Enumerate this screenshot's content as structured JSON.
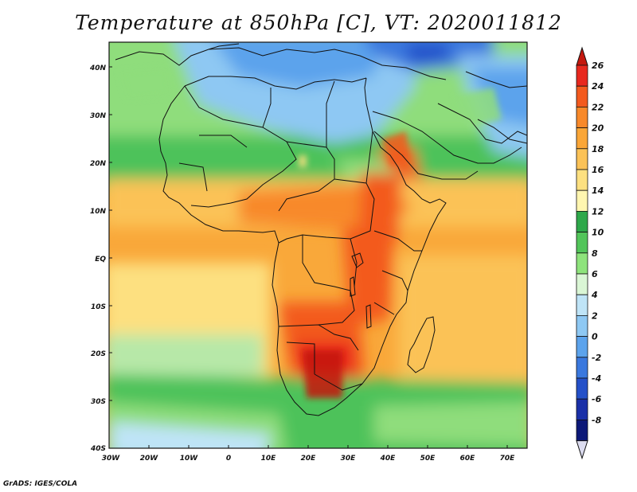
{
  "title": "Temperature at 850hPa [C], VT: 2020011812",
  "credit": "GrADS: IGES/COLA",
  "map": {
    "latitude_labels": [
      "40N",
      "30N",
      "20N",
      "10N",
      "EQ",
      "10S",
      "20S",
      "30S",
      "40S"
    ],
    "longitude_labels": [
      "30W",
      "20W",
      "10W",
      "0",
      "10E",
      "20E",
      "30E",
      "40E",
      "50E",
      "60E",
      "70E"
    ]
  },
  "colorbar": {
    "labels": [
      "26",
      "24",
      "22",
      "20",
      "18",
      "16",
      "14",
      "12",
      "10",
      "8",
      "6",
      "4",
      "2",
      "0",
      "-2",
      "-4",
      "-6",
      "-8"
    ],
    "colors": [
      "#e8281e",
      "#f35a1e",
      "#f8892a",
      "#faa637",
      "#fbc257",
      "#fde080",
      "#fff6b0",
      "#2ea84a",
      "#52c55a",
      "#8ee37c",
      "#daf6d5",
      "#bfe4f7",
      "#8ec8f3",
      "#5ca3ec",
      "#3a78de",
      "#2450c8",
      "#1a30a8",
      "#0c1878"
    ],
    "top_arrow_color": "#c4180e",
    "bottom_arrow_color": "#dcdcf0"
  }
}
